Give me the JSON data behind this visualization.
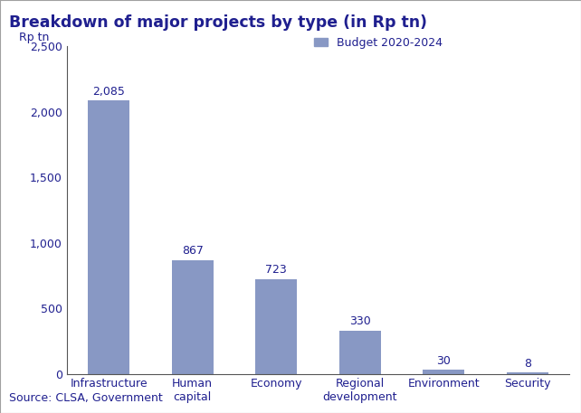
{
  "title": "Breakdown of major projects by type (in Rp tn)",
  "title_bg_color": "#FFE800",
  "title_text_color": "#1F1F8F",
  "title_border_color": "#8C8C8C",
  "categories": [
    "Infrastructure",
    "Human\ncapital",
    "Economy",
    "Regional\ndevelopment",
    "Environment",
    "Security"
  ],
  "values": [
    2085,
    867,
    723,
    330,
    30,
    8
  ],
  "value_labels": [
    "2,085",
    "867",
    "723",
    "330",
    "30",
    "8"
  ],
  "bar_color": "#8898C4",
  "ylim": [
    0,
    2500
  ],
  "yticks": [
    0,
    500,
    1000,
    1500,
    2000,
    2500
  ],
  "ytick_labels": [
    "0",
    "500",
    "1,000",
    "1,500",
    "2,000",
    "2,500"
  ],
  "ylabel_text": "Rp tn",
  "legend_label": "Budget 2020-2024",
  "source_text": "Source: CLSA, Government",
  "background_color": "#FFFFFF",
  "plot_bg_color": "#FFFFFF",
  "outer_border_color": "#A0A0A0",
  "axis_color": "#555555",
  "tick_label_color": "#1F1F8F",
  "value_label_color": "#1F1F8F",
  "source_color": "#1F1F8F",
  "legend_text_color": "#1F1F8F",
  "title_fontsize": 12.5,
  "axis_fontsize": 9,
  "value_fontsize": 9,
  "source_fontsize": 9,
  "ylabel_fontsize": 9,
  "legend_fontsize": 9,
  "bottom_stripe_yellow": "#FFE800",
  "bottom_stripe_dark": "#333333"
}
